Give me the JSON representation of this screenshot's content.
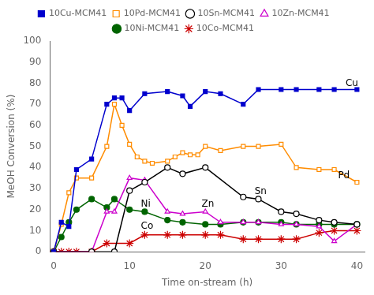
{
  "chart_data": {
    "type": "line",
    "x_label": "Time on-stream (h)",
    "y_label": "MeOH Conversion (%)",
    "xlim": [
      -0.5,
      41
    ],
    "ylim": [
      0,
      100
    ],
    "xticks": [
      0,
      10,
      20,
      30,
      40
    ],
    "yticks": [
      0,
      10,
      20,
      30,
      40,
      50,
      60,
      70,
      80,
      90,
      100
    ],
    "grid": false,
    "legend": "top",
    "series": [
      {
        "name": "10Cu-MCM41",
        "color": "#0000CD",
        "marker": "square",
        "x": [
          0,
          1,
          2,
          3,
          5,
          7,
          8,
          9,
          10,
          12,
          15,
          17,
          18,
          20,
          22,
          25,
          27,
          30,
          32,
          35,
          37,
          40
        ],
        "values": [
          0,
          14,
          12,
          39,
          44,
          70,
          73,
          73,
          67,
          75,
          76,
          74,
          69,
          76,
          75,
          70,
          77,
          77,
          77,
          77,
          77,
          77
        ]
      },
      {
        "name": "10Pd-MCM41",
        "color": "#FF8C00",
        "marker": "square-open",
        "x": [
          0,
          1,
          2,
          3,
          5,
          7,
          8,
          9,
          10,
          11,
          12,
          13,
          15,
          16,
          17,
          18,
          19,
          20,
          22,
          25,
          27,
          30,
          32,
          35,
          37,
          40
        ],
        "values": [
          0,
          13,
          28,
          35,
          35,
          50,
          70,
          60,
          51,
          45,
          43,
          42,
          43,
          45,
          47,
          46,
          46,
          50,
          48,
          50,
          50,
          51,
          40,
          39,
          39,
          33
        ]
      },
      {
        "name": "10Sn-MCM41",
        "color": "#000000",
        "marker": "circle-open",
        "x": [
          0,
          5,
          8,
          10,
          12,
          15,
          17,
          20,
          25,
          27,
          30,
          32,
          35,
          37,
          40
        ],
        "values": [
          0,
          0,
          0,
          29,
          33,
          40,
          37,
          40,
          26,
          25,
          19,
          18,
          15,
          14,
          13
        ]
      },
      {
        "name": "10Zn-MCM41",
        "color": "#CC00CC",
        "marker": "triangle-open",
        "x": [
          0,
          5,
          7,
          8,
          10,
          12,
          15,
          17,
          20,
          22,
          25,
          27,
          30,
          32,
          35,
          37,
          40
        ],
        "values": [
          0,
          0,
          19,
          19,
          35,
          34,
          19,
          18,
          19,
          14,
          14,
          14,
          13,
          13,
          12,
          5,
          13
        ]
      },
      {
        "name": "10Ni-MCM41",
        "color": "#006400",
        "marker": "circle",
        "x": [
          0,
          1,
          2,
          3,
          5,
          7,
          8,
          10,
          12,
          15,
          17,
          20,
          22,
          25,
          27,
          30,
          32,
          35,
          37,
          40
        ],
        "values": [
          0,
          7,
          14,
          20,
          25,
          21,
          25,
          20,
          19,
          15,
          14,
          13,
          13,
          14,
          14,
          14,
          13,
          13,
          13,
          13
        ]
      },
      {
        "name": "10Co-MCM41",
        "color": "#CC0000",
        "marker": "star",
        "x": [
          0,
          1,
          2,
          3,
          5,
          7,
          10,
          12,
          15,
          17,
          20,
          22,
          25,
          27,
          30,
          32,
          35,
          37,
          40
        ],
        "values": [
          0,
          0,
          0,
          0,
          0,
          4,
          4,
          8,
          8,
          8,
          8,
          8,
          6,
          6,
          6,
          6,
          9,
          10,
          10
        ]
      }
    ],
    "annotations": [
      {
        "text": "Cu",
        "x": 38.5,
        "y": 78.5
      },
      {
        "text": "Pd",
        "x": 37.5,
        "y": 35.0
      },
      {
        "text": "Sn",
        "x": 26.5,
        "y": 27.5
      },
      {
        "text": "Zn",
        "x": 19.5,
        "y": 21.5
      },
      {
        "text": "Ni",
        "x": 11.5,
        "y": 21.5
      },
      {
        "text": "Co",
        "x": 11.5,
        "y": 11.0
      }
    ]
  }
}
